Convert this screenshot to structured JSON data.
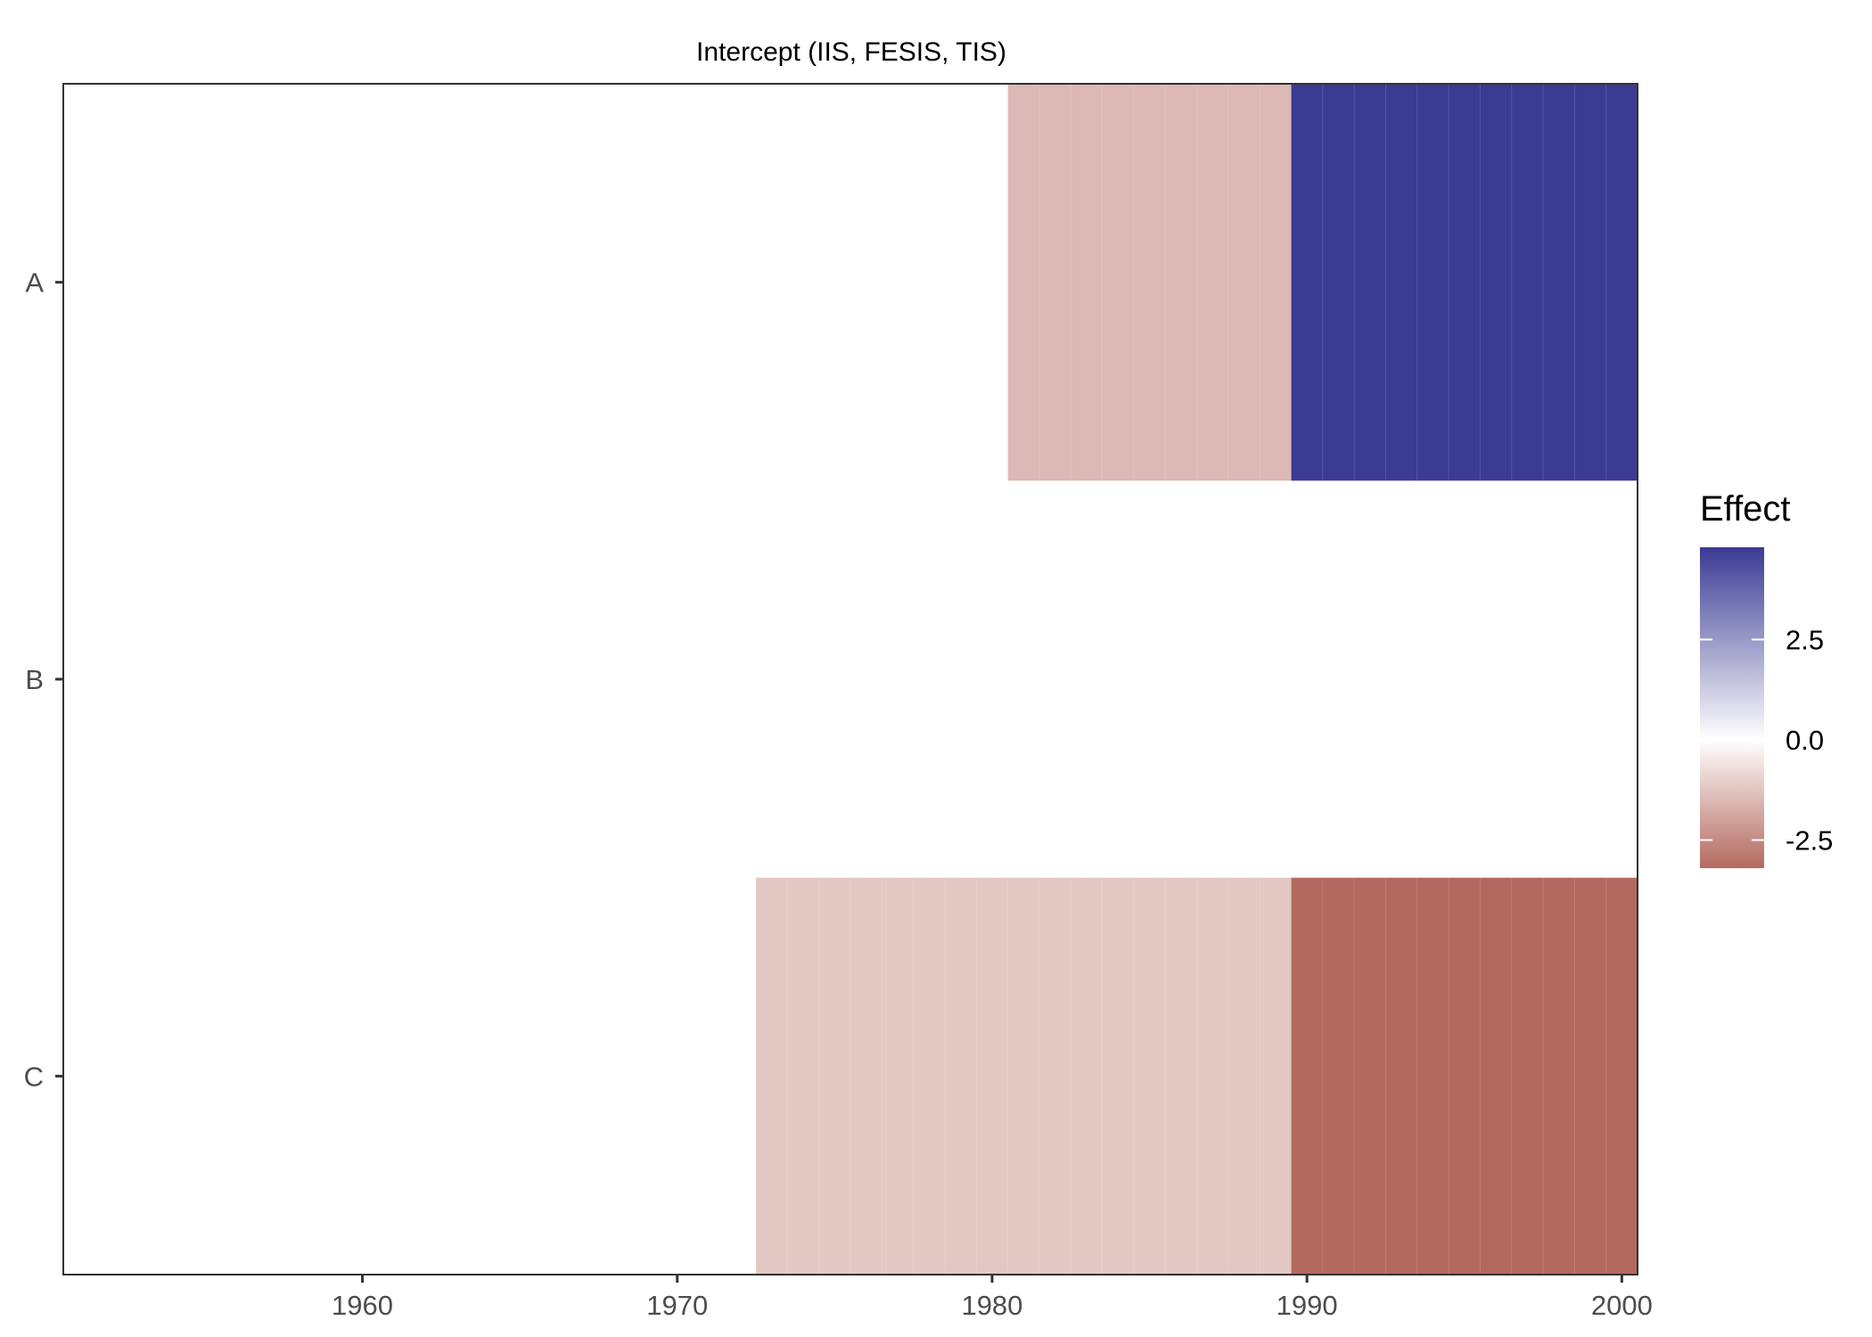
{
  "chart_data": {
    "type": "heatmap",
    "title": "Intercept (IIS, FESIS, TIS)",
    "xlabel": "",
    "ylabel": "",
    "xlim": [
      1950.5,
      2000.5
    ],
    "x_ticks": [
      1960,
      1970,
      1980,
      1990,
      2000
    ],
    "categories": [
      "A",
      "B",
      "C"
    ],
    "segments": [
      {
        "category": "A",
        "x_start": 1980.5,
        "x_end": 1989.5,
        "value": -1.5
      },
      {
        "category": "A",
        "x_start": 1989.5,
        "x_end": 2000.5,
        "value": 4.8
      },
      {
        "category": "C",
        "x_start": 1972.5,
        "x_end": 1989.5,
        "value": -1.2
      },
      {
        "category": "C",
        "x_start": 1989.5,
        "x_end": 2000.5,
        "value": -3.2
      }
    ],
    "legend": {
      "title": "Effect",
      "breaks": [
        2.5,
        0.0,
        -2.5
      ],
      "break_labels": [
        "2.5",
        "0.0",
        "-2.5"
      ],
      "range": [
        -3.2,
        4.8
      ],
      "low_color": "#b4695f",
      "mid_color": "#ffffff",
      "high_color": "#3b3b94",
      "position": "right"
    },
    "grid": false
  }
}
